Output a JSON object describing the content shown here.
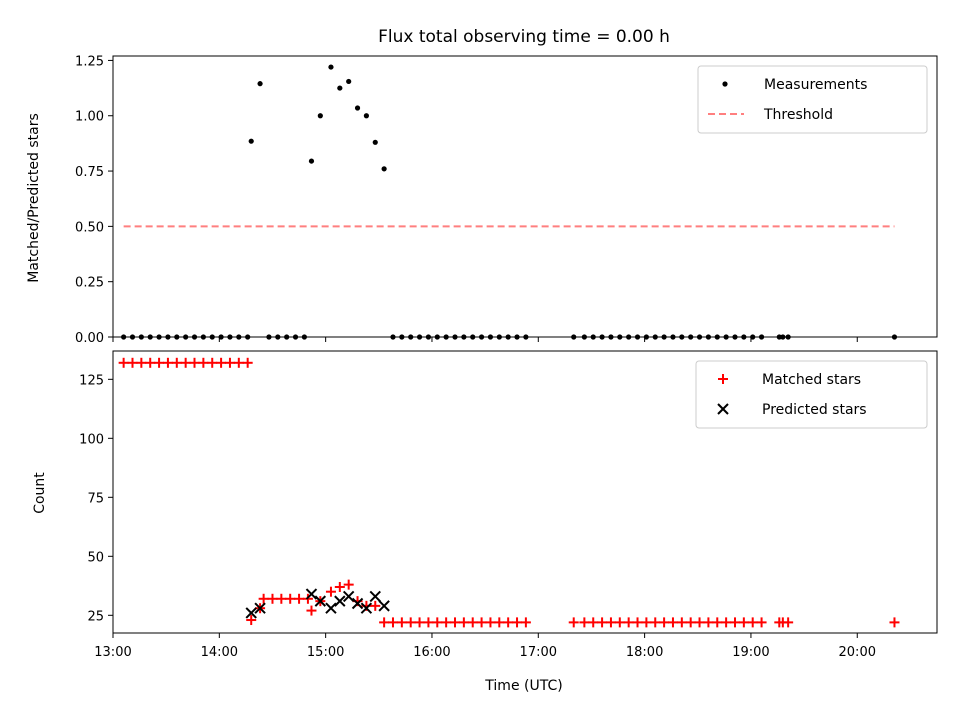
{
  "chart_data": [
    {
      "type": "scatter",
      "title": "Flux total observing time = 0.00 h",
      "xlabel": "",
      "ylabel": "Matched/Predicted stars",
      "xlim": [
        "13:00",
        "20:45"
      ],
      "ylim": [
        0,
        1.27
      ],
      "x_tick_labels": [
        "13:00",
        "14:00",
        "15:00",
        "16:00",
        "17:00",
        "18:00",
        "19:00",
        "20:00"
      ],
      "y_ticks": [
        0.0,
        0.25,
        0.5,
        0.75,
        1.0,
        1.25
      ],
      "y_tick_labels": [
        "0.00",
        "0.25",
        "0.50",
        "0.75",
        "1.00",
        "1.25"
      ],
      "legend_position": "top-right",
      "legend": [
        "Measurements",
        "Threshold"
      ],
      "series": [
        {
          "name": "Measurements",
          "marker": "dot",
          "color": "#000000",
          "points": [
            [
              "13:06",
              0
            ],
            [
              "13:11",
              0
            ],
            [
              "13:16",
              0
            ],
            [
              "13:21",
              0
            ],
            [
              "13:26",
              0
            ],
            [
              "13:31",
              0
            ],
            [
              "13:36",
              0
            ],
            [
              "13:41",
              0
            ],
            [
              "13:46",
              0
            ],
            [
              "13:51",
              0
            ],
            [
              "13:56",
              0
            ],
            [
              "14:01",
              0
            ],
            [
              "14:06",
              0
            ],
            [
              "14:11",
              0
            ],
            [
              "14:16",
              0
            ],
            [
              "14:18",
              0.885
            ],
            [
              "14:23",
              1.145
            ],
            [
              "14:28",
              0
            ],
            [
              "14:33",
              0
            ],
            [
              "14:38",
              0
            ],
            [
              "14:43",
              0
            ],
            [
              "14:48",
              0
            ],
            [
              "14:52",
              0.795
            ],
            [
              "14:57",
              1.0
            ],
            [
              "15:03",
              1.22
            ],
            [
              "15:08",
              1.125
            ],
            [
              "15:13",
              1.155
            ],
            [
              "15:18",
              1.035
            ],
            [
              "15:23",
              1.0
            ],
            [
              "15:28",
              0.88
            ],
            [
              "15:33",
              0.76
            ],
            [
              "15:38",
              0
            ],
            [
              "15:43",
              0
            ],
            [
              "15:48",
              0
            ],
            [
              "15:53",
              0
            ],
            [
              "15:58",
              0
            ],
            [
              "16:03",
              0
            ],
            [
              "16:08",
              0
            ],
            [
              "16:13",
              0
            ],
            [
              "16:18",
              0
            ],
            [
              "16:23",
              0
            ],
            [
              "16:28",
              0
            ],
            [
              "16:33",
              0
            ],
            [
              "16:38",
              0
            ],
            [
              "16:43",
              0
            ],
            [
              "16:48",
              0
            ],
            [
              "16:53",
              0
            ],
            [
              "17:20",
              0
            ],
            [
              "17:26",
              0
            ],
            [
              "17:31",
              0
            ],
            [
              "17:36",
              0
            ],
            [
              "17:41",
              0
            ],
            [
              "17:46",
              0
            ],
            [
              "17:51",
              0
            ],
            [
              "17:56",
              0
            ],
            [
              "18:01",
              0
            ],
            [
              "18:06",
              0
            ],
            [
              "18:11",
              0
            ],
            [
              "18:16",
              0
            ],
            [
              "18:21",
              0
            ],
            [
              "18:26",
              0
            ],
            [
              "18:31",
              0
            ],
            [
              "18:36",
              0
            ],
            [
              "18:41",
              0
            ],
            [
              "18:46",
              0
            ],
            [
              "18:51",
              0
            ],
            [
              "18:56",
              0
            ],
            [
              "19:01",
              0
            ],
            [
              "19:06",
              0
            ],
            [
              "19:16",
              0
            ],
            [
              "19:18",
              0
            ],
            [
              "19:21",
              0
            ],
            [
              "20:21",
              0
            ]
          ]
        },
        {
          "name": "Threshold",
          "style": "dashed",
          "color": "#ff7f7f",
          "points": [
            [
              "13:06",
              0.5
            ],
            [
              "20:21",
              0.5
            ]
          ]
        }
      ]
    },
    {
      "type": "scatter",
      "title": "",
      "xlabel": "Time (UTC)",
      "ylabel": "Count",
      "xlim": [
        "13:00",
        "20:45"
      ],
      "ylim": [
        17.5,
        137
      ],
      "x_tick_labels": [
        "13:00",
        "14:00",
        "15:00",
        "16:00",
        "17:00",
        "18:00",
        "19:00",
        "20:00"
      ],
      "y_ticks": [
        25,
        50,
        75,
        100,
        125
      ],
      "y_tick_labels": [
        "25",
        "50",
        "75",
        "100",
        "125"
      ],
      "legend_position": "top-right",
      "legend": [
        "Matched stars",
        "Predicted stars"
      ],
      "series": [
        {
          "name": "Matched stars",
          "marker": "plus",
          "color": "#ff0000",
          "points": [
            [
              "13:06",
              132
            ],
            [
              "13:11",
              132
            ],
            [
              "13:16",
              132
            ],
            [
              "13:21",
              132
            ],
            [
              "13:26",
              132
            ],
            [
              "13:31",
              132
            ],
            [
              "13:36",
              132
            ],
            [
              "13:41",
              132
            ],
            [
              "13:46",
              132
            ],
            [
              "13:51",
              132
            ],
            [
              "13:56",
              132
            ],
            [
              "14:01",
              132
            ],
            [
              "14:06",
              132
            ],
            [
              "14:11",
              132
            ],
            [
              "14:16",
              132
            ],
            [
              "14:18",
              23
            ],
            [
              "14:23",
              28
            ],
            [
              "14:25",
              32
            ],
            [
              "14:30",
              32
            ],
            [
              "14:35",
              32
            ],
            [
              "14:40",
              32
            ],
            [
              "14:45",
              32
            ],
            [
              "14:50",
              32
            ],
            [
              "14:52",
              27
            ],
            [
              "14:57",
              31
            ],
            [
              "15:03",
              35
            ],
            [
              "15:08",
              37
            ],
            [
              "15:13",
              38
            ],
            [
              "15:18",
              31
            ],
            [
              "15:23",
              29
            ],
            [
              "15:28",
              29
            ],
            [
              "15:33",
              22
            ],
            [
              "15:38",
              22
            ],
            [
              "15:43",
              22
            ],
            [
              "15:48",
              22
            ],
            [
              "15:53",
              22
            ],
            [
              "15:58",
              22
            ],
            [
              "16:03",
              22
            ],
            [
              "16:08",
              22
            ],
            [
              "16:13",
              22
            ],
            [
              "16:18",
              22
            ],
            [
              "16:23",
              22
            ],
            [
              "16:28",
              22
            ],
            [
              "16:33",
              22
            ],
            [
              "16:38",
              22
            ],
            [
              "16:43",
              22
            ],
            [
              "16:48",
              22
            ],
            [
              "16:53",
              22
            ],
            [
              "17:20",
              22
            ],
            [
              "17:26",
              22
            ],
            [
              "17:31",
              22
            ],
            [
              "17:36",
              22
            ],
            [
              "17:41",
              22
            ],
            [
              "17:46",
              22
            ],
            [
              "17:51",
              22
            ],
            [
              "17:56",
              22
            ],
            [
              "18:01",
              22
            ],
            [
              "18:06",
              22
            ],
            [
              "18:11",
              22
            ],
            [
              "18:16",
              22
            ],
            [
              "18:21",
              22
            ],
            [
              "18:26",
              22
            ],
            [
              "18:31",
              22
            ],
            [
              "18:36",
              22
            ],
            [
              "18:41",
              22
            ],
            [
              "18:46",
              22
            ],
            [
              "18:51",
              22
            ],
            [
              "18:56",
              22
            ],
            [
              "19:01",
              22
            ],
            [
              "19:06",
              22
            ],
            [
              "19:16",
              22
            ],
            [
              "19:18",
              22
            ],
            [
              "19:21",
              22
            ],
            [
              "20:21",
              22
            ]
          ]
        },
        {
          "name": "Predicted stars",
          "marker": "x",
          "color": "#000000",
          "points": [
            [
              "14:18",
              26
            ],
            [
              "14:23",
              28
            ],
            [
              "14:52",
              34
            ],
            [
              "14:57",
              31
            ],
            [
              "15:03",
              28
            ],
            [
              "15:08",
              31
            ],
            [
              "15:13",
              33
            ],
            [
              "15:18",
              30
            ],
            [
              "15:23",
              28
            ],
            [
              "15:28",
              33
            ],
            [
              "15:33",
              29
            ]
          ]
        }
      ]
    }
  ]
}
